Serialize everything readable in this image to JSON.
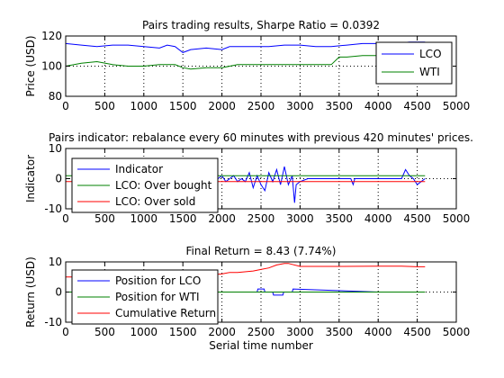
{
  "colors": {
    "blue": "#0000ff",
    "green": "#008000",
    "red": "#ff0000",
    "black": "#000000"
  },
  "chart_data": [
    {
      "type": "line",
      "title": "Pairs trading results, Sharpe Ratio = 0.0392",
      "xlabel": "",
      "ylabel": "Price (USD)",
      "xlim": [
        0,
        5000
      ],
      "ylim": [
        80,
        120
      ],
      "xticks": [
        0,
        500,
        1000,
        1500,
        2000,
        2500,
        3000,
        3500,
        4000,
        4500,
        5000
      ],
      "xtick_labels": [
        "0",
        "500",
        "1000",
        "1500",
        "2000",
        "2500",
        "3000",
        "3500",
        "4000",
        "4500",
        "5000"
      ],
      "yticks": [
        80,
        100,
        120
      ],
      "ytick_labels": [
        "80",
        "100",
        "120"
      ],
      "grid": true,
      "legend_position": "top-right",
      "series": [
        {
          "name": "LCO",
          "color": "blue",
          "x": [
            0,
            200,
            400,
            600,
            800,
            1000,
            1200,
            1300,
            1400,
            1500,
            1600,
            1800,
            2000,
            2100,
            2200,
            2400,
            2600,
            2800,
            3000,
            3200,
            3400,
            3600,
            3800,
            4000,
            4200,
            4400,
            4600
          ],
          "y": [
            115,
            114,
            113,
            114,
            114,
            113,
            112,
            114,
            113,
            109,
            111,
            112,
            111,
            113,
            113,
            113,
            113,
            114,
            114,
            113,
            113,
            114,
            115,
            115,
            115,
            116,
            116
          ]
        },
        {
          "name": "WTI",
          "color": "green",
          "x": [
            0,
            200,
            400,
            600,
            800,
            1000,
            1200,
            1400,
            1500,
            1600,
            1800,
            2000,
            2100,
            2200,
            2400,
            2600,
            2800,
            3000,
            3200,
            3400,
            3500,
            3600,
            3800,
            4000,
            4200,
            4400,
            4600
          ],
          "y": [
            100,
            102,
            103,
            101,
            100,
            100,
            101,
            101,
            99,
            98,
            99,
            99,
            100,
            101,
            101,
            101,
            101,
            101,
            101,
            101,
            106,
            106,
            107,
            107,
            108,
            108,
            108
          ]
        }
      ]
    },
    {
      "type": "line",
      "title": "Pairs indicator: rebalance every 60 minutes with previous 420 minutes' prices.",
      "xlabel": "",
      "ylabel": "Indicator",
      "xlim": [
        0,
        5000
      ],
      "ylim": [
        -10,
        10
      ],
      "xticks": [
        0,
        500,
        1000,
        1500,
        2000,
        2500,
        3000,
        3500,
        4000,
        4500,
        5000
      ],
      "xtick_labels": [
        "0",
        "500",
        "1000",
        "1500",
        "2000",
        "2500",
        "3000",
        "3500",
        "4000",
        "4500",
        "5000"
      ],
      "yticks": [
        -10,
        0,
        10
      ],
      "ytick_labels": [
        "-10",
        "0",
        "10"
      ],
      "grid": true,
      "legend_position": "top-left",
      "series": [
        {
          "name": "Indicator",
          "color": "blue",
          "x": [
            1950,
            2000,
            2050,
            2100,
            2150,
            2200,
            2250,
            2300,
            2350,
            2400,
            2450,
            2500,
            2550,
            2600,
            2650,
            2700,
            2750,
            2800,
            2850,
            2900,
            2930,
            2950,
            3000,
            3100,
            3300,
            3500,
            3650,
            3680,
            3700,
            3800,
            4000,
            4200,
            4300,
            4350,
            4400,
            4450,
            4500,
            4550,
            4600
          ],
          "y": [
            0,
            1,
            -1,
            0,
            1,
            -1,
            0,
            -1,
            2,
            -3,
            1,
            -2,
            -4,
            2,
            -1,
            3,
            -2,
            4,
            -2,
            1,
            -8,
            -2,
            -1,
            0,
            0,
            0,
            0,
            -2,
            0,
            0,
            0,
            0,
            0,
            3,
            1,
            0,
            -2,
            -1,
            0
          ]
        },
        {
          "name": "LCO: Over bought",
          "color": "green",
          "x": [
            0,
            4600
          ],
          "y": [
            1,
            1
          ]
        },
        {
          "name": "LCO: Over sold",
          "color": "red",
          "x": [
            0,
            4600
          ],
          "y": [
            -1,
            -1
          ]
        }
      ]
    },
    {
      "type": "line",
      "title": "Final Return = 8.43 (7.74%)",
      "xlabel": "Serial time number",
      "ylabel": "Return (USD)",
      "xlim": [
        0,
        5000
      ],
      "ylim": [
        -10,
        10
      ],
      "xticks": [
        0,
        500,
        1000,
        1500,
        2000,
        2500,
        3000,
        3500,
        4000,
        4500,
        5000
      ],
      "xtick_labels": [
        "0",
        "500",
        "1000",
        "1500",
        "2000",
        "2500",
        "3000",
        "3500",
        "4000",
        "4500",
        "5000"
      ],
      "yticks": [
        -10,
        0,
        10
      ],
      "ytick_labels": [
        "-10",
        "0",
        "10"
      ],
      "grid": true,
      "legend_position": "top-left",
      "series": [
        {
          "name": "Position for LCO",
          "color": "blue",
          "x": [
            0,
            2450,
            2460,
            2540,
            2550,
            2650,
            2660,
            2780,
            2790,
            2900,
            2910,
            4000
          ],
          "y": [
            0,
            0,
            1,
            1,
            0,
            0,
            -1,
            -1,
            0,
            0,
            1,
            0
          ]
        },
        {
          "name": "Position for WTI",
          "color": "green",
          "x": [
            0,
            4600
          ],
          "y": [
            0,
            0
          ]
        },
        {
          "name": "Cumulative Return",
          "color": "red",
          "x": [
            0,
            500,
            1000,
            1500,
            2000,
            2100,
            2200,
            2400,
            2500,
            2600,
            2700,
            2800,
            2850,
            3000,
            3200,
            3500,
            4000,
            4300,
            4500,
            4600
          ],
          "y": [
            5,
            5,
            5,
            5,
            6,
            6.5,
            6.5,
            7,
            7.5,
            8,
            9,
            9.5,
            9.5,
            8.5,
            8.5,
            8.5,
            8.6,
            8.6,
            8.4,
            8.4
          ]
        }
      ]
    }
  ]
}
